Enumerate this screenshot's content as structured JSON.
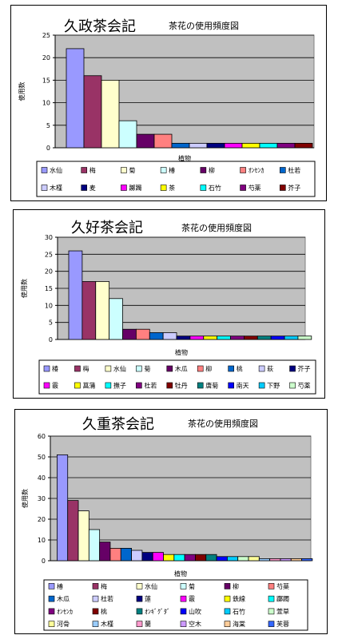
{
  "palette": [
    "#9999ff",
    "#993366",
    "#ffffcc",
    "#ccffff",
    "#660066",
    "#ff8080",
    "#0066cc",
    "#ccccff",
    "#000080",
    "#ff00ff",
    "#ffff00",
    "#00ffff",
    "#800080",
    "#800000",
    "#008080",
    "#0000ff",
    "#00ccff",
    "#ccffcc",
    "#ffff99",
    "#99ccff",
    "#ff99cc",
    "#cc99ff",
    "#ffcc99",
    "#3366ff",
    "#33cccc"
  ],
  "chart_data": [
    {
      "type": "bar",
      "title": "久政茶会記",
      "subtitle": "茶花の使用頻度図",
      "xlabel": "植物",
      "ylabel": "使用数",
      "ylim": [
        0,
        25
      ],
      "yticks": [
        0,
        5,
        10,
        15,
        20,
        25
      ],
      "grid": true,
      "legend_position": "bottom",
      "categories": [
        "水仙",
        "梅",
        "菊",
        "椿",
        "柳",
        "ｵﾝｾﾝｶ",
        "杜若",
        "木槿",
        "麦",
        "躑躅",
        "茶",
        "石竹",
        "芍薬",
        "芥子"
      ],
      "values": [
        22,
        16,
        15,
        6,
        3,
        3,
        1,
        1,
        1,
        1,
        1,
        1,
        1,
        1
      ]
    },
    {
      "type": "bar",
      "title": "久好茶会記",
      "subtitle": "茶花の使用頻度図",
      "xlabel": "植物",
      "ylabel": "使用数",
      "ylim": [
        0,
        30
      ],
      "yticks": [
        0,
        5,
        10,
        15,
        20,
        25,
        30
      ],
      "grid": true,
      "legend_position": "bottom",
      "categories": [
        "椿",
        "梅",
        "水仙",
        "菊",
        "木瓜",
        "柳",
        "桃",
        "萩",
        "芥子",
        "霰",
        "菖蒲",
        "撫子",
        "杜若",
        "牡丹",
        "唐菊",
        "南天",
        "下野",
        "芍薬"
      ],
      "values": [
        26,
        17,
        17,
        12,
        3,
        3,
        2,
        2,
        1,
        1,
        1,
        1,
        1,
        1,
        1,
        1,
        1,
        1
      ]
    },
    {
      "type": "bar",
      "title": "久重茶会記",
      "subtitle": "茶花の使用頻度図",
      "xlabel": "植物",
      "ylabel": "使用数",
      "ylim": [
        0,
        60
      ],
      "yticks": [
        0,
        10,
        20,
        30,
        40,
        50,
        60
      ],
      "grid": true,
      "legend_position": "bottom",
      "categories": [
        "椿",
        "梅",
        "水仙",
        "菊",
        "柳",
        "芍薬",
        "木瓜",
        "杜若",
        "蓮",
        "霰",
        "鉄線",
        "躑躅",
        "ｵﾝｾﾝｶ",
        "桃",
        "ｵﾝｷﾞｸﾞﾀﾞ",
        "山吹",
        "石竹",
        "萱草",
        "河骨",
        "木槿",
        "蘭",
        "空木",
        "海棠",
        "芙蓉"
      ],
      "values": [
        51,
        29,
        24,
        15,
        9,
        6,
        6,
        5,
        4,
        4,
        3,
        3,
        3,
        3,
        3,
        2,
        2,
        2,
        2,
        1,
        1,
        1,
        1,
        1
      ]
    }
  ]
}
